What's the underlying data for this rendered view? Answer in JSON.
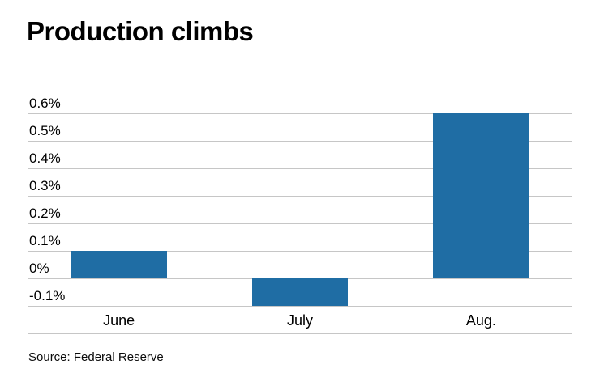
{
  "title": "Production climbs",
  "source": "Source: Federal Reserve",
  "colors": {
    "bar": "#1f6da4",
    "gridline": "#c6c6c6",
    "text": "#000000"
  },
  "chart_data": {
    "type": "bar",
    "title": "Production climbs",
    "categories": [
      "June",
      "July",
      "Aug."
    ],
    "values": [
      0.1,
      -0.1,
      0.6
    ],
    "xlabel": "",
    "ylabel": "",
    "ylim": [
      -0.2,
      0.6
    ],
    "yticks": [
      0.6,
      0.5,
      0.4,
      0.3,
      0.2,
      0.1,
      0,
      -0.1
    ],
    "ytick_labels": [
      "0.6%",
      "0.5%",
      "0.4%",
      "0.3%",
      "0.2%",
      "0.1%",
      "0%",
      "-0.1%"
    ],
    "grid": true,
    "legend": false,
    "value_unit": "%",
    "source_note": "Source: Federal Reserve"
  }
}
